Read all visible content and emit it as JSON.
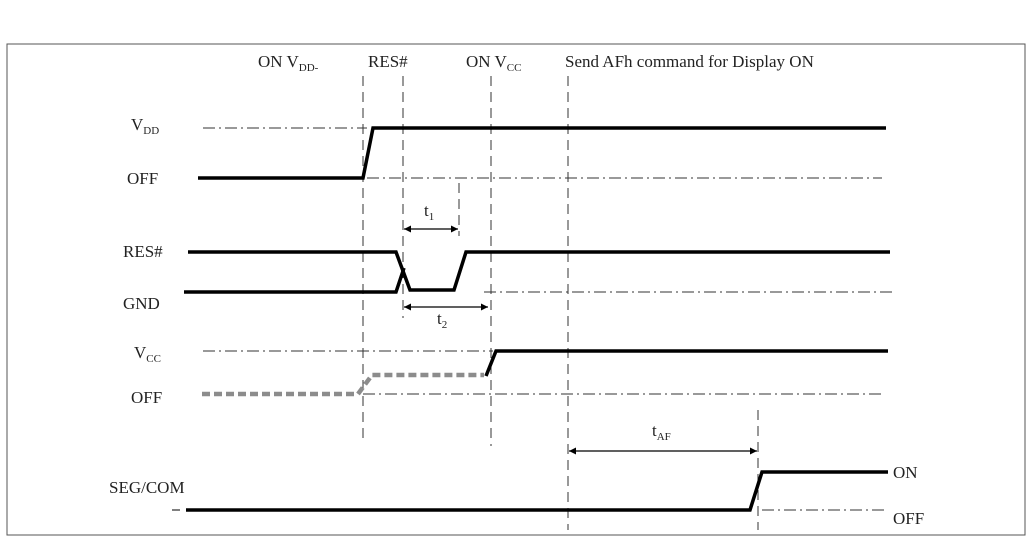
{
  "header": {
    "on_vdd": {
      "main": "ON V",
      "sub": "DD-"
    },
    "res": "RES#",
    "on_vcc": {
      "main": "ON V",
      "sub": "CC"
    },
    "send_cmd": "Send AFh command for Display ON"
  },
  "signals": {
    "vdd": {
      "main": "V",
      "sub": "DD"
    },
    "off1": "OFF",
    "res": "RES#",
    "gnd": "GND",
    "vcc": {
      "main": "V",
      "sub": "CC"
    },
    "off2": "OFF",
    "segcom": "SEG/COM",
    "on": "ON",
    "off3": "OFF"
  },
  "timings": {
    "t1": {
      "main": "t",
      "sub": "1"
    },
    "t2": {
      "main": "t",
      "sub": "2"
    },
    "taf": {
      "main": "t",
      "sub": "AF"
    }
  },
  "colors": {
    "line": "#000000",
    "frame": "#555555",
    "dashed": "#333333",
    "vcc_pre": "#8c8c8c"
  }
}
